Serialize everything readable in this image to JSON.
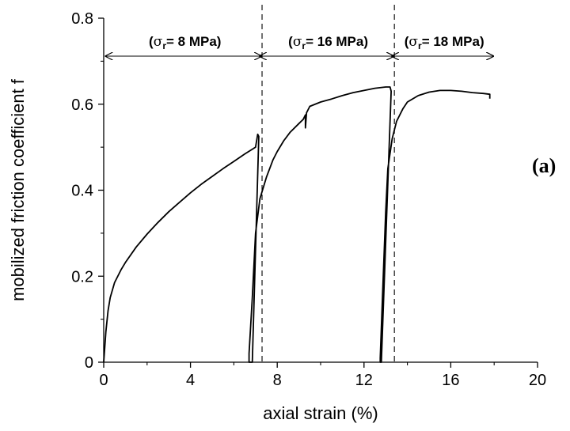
{
  "chart_data": {
    "type": "line",
    "xlabel": "axial strain (%)",
    "ylabel": "mobilized friction coefficient f",
    "xlim": [
      0,
      20
    ],
    "ylim": [
      0,
      0.8
    ],
    "x_ticks": [
      "0",
      "4",
      "8",
      "12",
      "16",
      "20"
    ],
    "y_ticks": [
      "0",
      "0.2",
      "0.4",
      "0.6",
      "0.8"
    ],
    "panel_label": "(a)",
    "regions": [
      {
        "sym": "σ",
        "sub": "r",
        "value": "= 8 MPa",
        "x_start": 0.2,
        "x_end": 7.3
      },
      {
        "sym": "σ",
        "sub": "r",
        "value": "= 16 MPa",
        "x_start": 7.3,
        "x_end": 13.4
      },
      {
        "sym": "σ",
        "sub": "r",
        "value": "= 18 MPa",
        "x_start": 13.4,
        "x_end": 18.0
      }
    ],
    "vertical_dashed_lines": [
      7.3,
      13.4
    ],
    "series": [
      {
        "points": [
          [
            0.0,
            0.0
          ],
          [
            0.1,
            0.07
          ],
          [
            0.2,
            0.12
          ],
          [
            0.3,
            0.15
          ],
          [
            0.5,
            0.185
          ],
          [
            0.8,
            0.215
          ],
          [
            1.0,
            0.232
          ],
          [
            1.5,
            0.268
          ],
          [
            2.0,
            0.298
          ],
          [
            2.5,
            0.325
          ],
          [
            3.0,
            0.35
          ],
          [
            3.5,
            0.372
          ],
          [
            4.0,
            0.394
          ],
          [
            4.5,
            0.414
          ],
          [
            5.0,
            0.432
          ],
          [
            5.5,
            0.45
          ],
          [
            6.0,
            0.467
          ],
          [
            6.5,
            0.484
          ],
          [
            7.0,
            0.5
          ],
          [
            7.1,
            0.53
          ],
          [
            7.15,
            0.525
          ],
          [
            6.85,
            0.0
          ],
          [
            6.7,
            0.0
          ],
          [
            6.7,
            0.02
          ],
          [
            6.85,
            0.15
          ],
          [
            7.0,
            0.3
          ],
          [
            7.2,
            0.38
          ],
          [
            7.5,
            0.43
          ],
          [
            7.8,
            0.47
          ],
          [
            8.0,
            0.49
          ],
          [
            8.3,
            0.515
          ],
          [
            8.6,
            0.535
          ],
          [
            9.0,
            0.555
          ],
          [
            9.2,
            0.565
          ],
          [
            9.3,
            0.575
          ],
          [
            9.3,
            0.545
          ],
          [
            9.35,
            0.58
          ],
          [
            9.5,
            0.595
          ],
          [
            10.0,
            0.605
          ],
          [
            10.5,
            0.612
          ],
          [
            11.0,
            0.62
          ],
          [
            11.5,
            0.627
          ],
          [
            12.0,
            0.632
          ],
          [
            12.5,
            0.637
          ],
          [
            13.0,
            0.64
          ],
          [
            13.2,
            0.64
          ],
          [
            13.25,
            0.63
          ],
          [
            12.8,
            0.0
          ],
          [
            12.75,
            0.0
          ],
          [
            12.75,
            0.01
          ],
          [
            12.85,
            0.15
          ],
          [
            13.0,
            0.35
          ],
          [
            13.1,
            0.45
          ],
          [
            13.3,
            0.52
          ],
          [
            13.5,
            0.56
          ],
          [
            13.8,
            0.59
          ],
          [
            14.0,
            0.605
          ],
          [
            14.5,
            0.62
          ],
          [
            15.0,
            0.628
          ],
          [
            15.5,
            0.632
          ],
          [
            16.0,
            0.632
          ],
          [
            16.5,
            0.63
          ],
          [
            17.0,
            0.627
          ],
          [
            17.5,
            0.625
          ],
          [
            17.8,
            0.623
          ],
          [
            17.8,
            0.613
          ]
        ]
      }
    ]
  }
}
